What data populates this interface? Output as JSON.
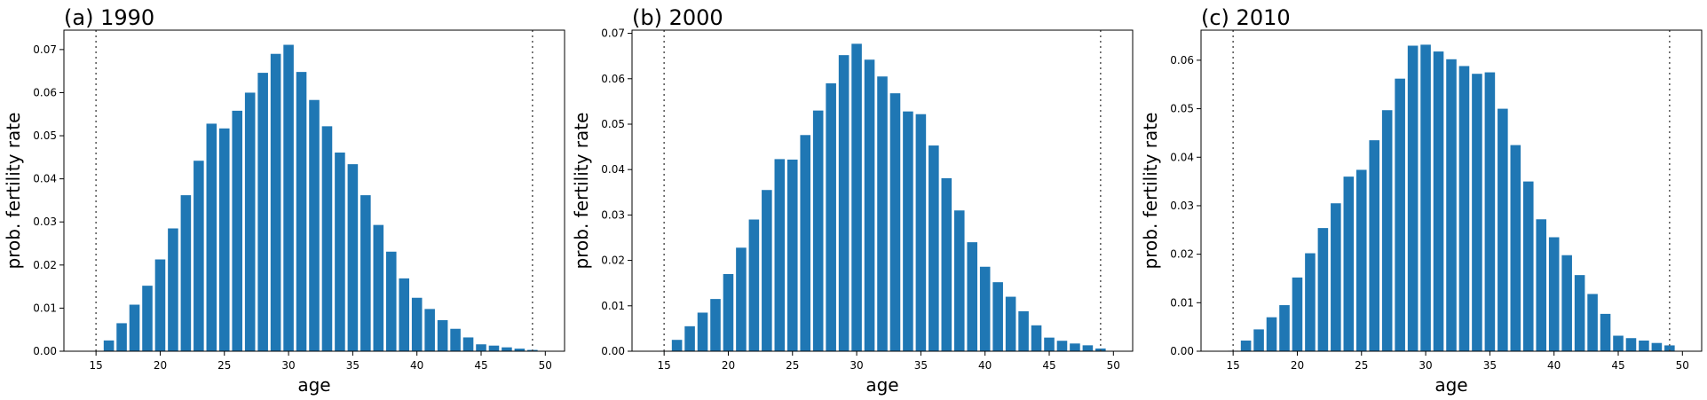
{
  "colors": {
    "bar": "#1f77b4",
    "reference_line": "#555555",
    "axes": "#000000"
  },
  "chart_data": [
    {
      "type": "bar",
      "title": "(a) 1990",
      "xlabel": "age",
      "ylabel": "prob. fertility rate",
      "xlim": [
        12.5,
        51.5
      ],
      "ylim": [
        0,
        0.0745
      ],
      "xticks": [
        15,
        20,
        25,
        30,
        35,
        40,
        45,
        50
      ],
      "yticks": [
        0.0,
        0.01,
        0.02,
        0.03,
        0.04,
        0.05,
        0.06,
        0.07
      ],
      "ytick_labels": [
        "0.00",
        "0.01",
        "0.02",
        "0.03",
        "0.04",
        "0.05",
        "0.06",
        "0.07"
      ],
      "reference_lines_x": [
        15,
        49
      ],
      "grid": false,
      "x": [
        15,
        16,
        17,
        18,
        19,
        20,
        21,
        22,
        23,
        24,
        25,
        26,
        27,
        28,
        29,
        30,
        31,
        32,
        33,
        34,
        35,
        36,
        37,
        38,
        39,
        40,
        41,
        42,
        43,
        44,
        45,
        46,
        47,
        48,
        49
      ],
      "values": [
        0.0001,
        0.0025,
        0.0065,
        0.0108,
        0.0152,
        0.0213,
        0.0285,
        0.0362,
        0.0442,
        0.0528,
        0.0517,
        0.0558,
        0.06,
        0.0646,
        0.069,
        0.0711,
        0.0648,
        0.0583,
        0.0522,
        0.0461,
        0.0434,
        0.0362,
        0.0293,
        0.0231,
        0.0169,
        0.0124,
        0.0098,
        0.0072,
        0.0052,
        0.0032,
        0.0016,
        0.0013,
        0.0009,
        0.0006,
        0.0003
      ]
    },
    {
      "type": "bar",
      "title": "(b) 2000",
      "xlabel": "age",
      "ylabel": "prob. fertility rate",
      "xlim": [
        12.5,
        51.5
      ],
      "ylim": [
        0,
        0.0707
      ],
      "xticks": [
        15,
        20,
        25,
        30,
        35,
        40,
        45,
        50
      ],
      "yticks": [
        0.0,
        0.01,
        0.02,
        0.03,
        0.04,
        0.05,
        0.06,
        0.07
      ],
      "ytick_labels": [
        "0.00",
        "0.01",
        "0.02",
        "0.03",
        "0.04",
        "0.05",
        "0.06",
        "0.07"
      ],
      "reference_lines_x": [
        15,
        49
      ],
      "grid": false,
      "x": [
        15,
        16,
        17,
        18,
        19,
        20,
        21,
        22,
        23,
        24,
        25,
        26,
        27,
        28,
        29,
        30,
        31,
        32,
        33,
        34,
        35,
        36,
        37,
        38,
        39,
        40,
        41,
        42,
        43,
        44,
        45,
        46,
        47,
        48,
        49
      ],
      "values": [
        0.0001,
        0.0025,
        0.0055,
        0.0085,
        0.0115,
        0.017,
        0.0228,
        0.029,
        0.0355,
        0.0423,
        0.0422,
        0.0476,
        0.053,
        0.059,
        0.0652,
        0.0677,
        0.0642,
        0.0605,
        0.0568,
        0.0528,
        0.0522,
        0.0453,
        0.0381,
        0.031,
        0.024,
        0.0186,
        0.0152,
        0.012,
        0.0088,
        0.0057,
        0.003,
        0.0023,
        0.0017,
        0.0013,
        0.0006
      ]
    },
    {
      "type": "bar",
      "title": "(c) 2010",
      "xlabel": "age",
      "ylabel": "prob. fertility rate",
      "xlim": [
        12.5,
        51.5
      ],
      "ylim": [
        0,
        0.0662
      ],
      "xticks": [
        15,
        20,
        25,
        30,
        35,
        40,
        45,
        50
      ],
      "yticks": [
        0.0,
        0.01,
        0.02,
        0.03,
        0.04,
        0.05,
        0.06
      ],
      "ytick_labels": [
        "0.00",
        "0.01",
        "0.02",
        "0.03",
        "0.04",
        "0.05",
        "0.06"
      ],
      "reference_lines_x": [
        15,
        49
      ],
      "grid": false,
      "x": [
        15,
        16,
        17,
        18,
        19,
        20,
        21,
        22,
        23,
        24,
        25,
        26,
        27,
        28,
        29,
        30,
        31,
        32,
        33,
        34,
        35,
        36,
        37,
        38,
        39,
        40,
        41,
        42,
        43,
        44,
        45,
        46,
        47,
        48,
        49
      ],
      "values": [
        0.0001,
        0.0022,
        0.0045,
        0.007,
        0.0095,
        0.0152,
        0.0202,
        0.0254,
        0.0305,
        0.036,
        0.0374,
        0.0435,
        0.0497,
        0.0562,
        0.063,
        0.0632,
        0.0618,
        0.0602,
        0.0588,
        0.0572,
        0.0575,
        0.05,
        0.0425,
        0.035,
        0.0272,
        0.0235,
        0.0198,
        0.0157,
        0.0118,
        0.0077,
        0.0032,
        0.0027,
        0.0022,
        0.0017,
        0.0012
      ]
    }
  ]
}
